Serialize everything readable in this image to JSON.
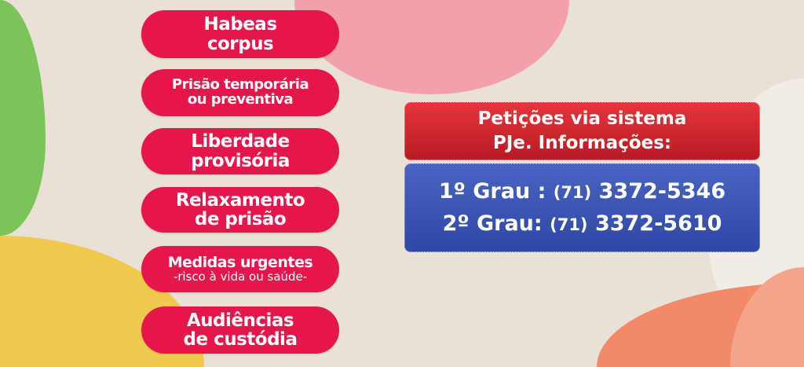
{
  "colors": {
    "background": "#e9e1d5",
    "pill": "#e6154a",
    "red_box": "#c92029",
    "blue_box": "#3d55b5"
  },
  "services": [
    {
      "lines": [
        "Habeas",
        "corpus"
      ]
    },
    {
      "lines": [
        "Prisão temporária",
        "ou preventiva"
      ]
    },
    {
      "lines": [
        "Liberdade",
        "provisória"
      ]
    },
    {
      "lines": [
        "Relaxamento",
        "de prisão"
      ]
    },
    {
      "lines": [
        "Medidas urgentes"
      ],
      "sub": "-risco à vida ou saúde-"
    },
    {
      "lines": [
        "Audiências",
        "de custódia"
      ]
    }
  ],
  "info": {
    "title_lines": [
      "Petições via sistema",
      "PJe. Informações:"
    ],
    "phones": [
      {
        "label": "1º Grau :",
        "area": "(71)",
        "number": "3372-5346"
      },
      {
        "label": "2º Grau:",
        "area": "(71)",
        "number": "3372-5610"
      }
    ]
  }
}
